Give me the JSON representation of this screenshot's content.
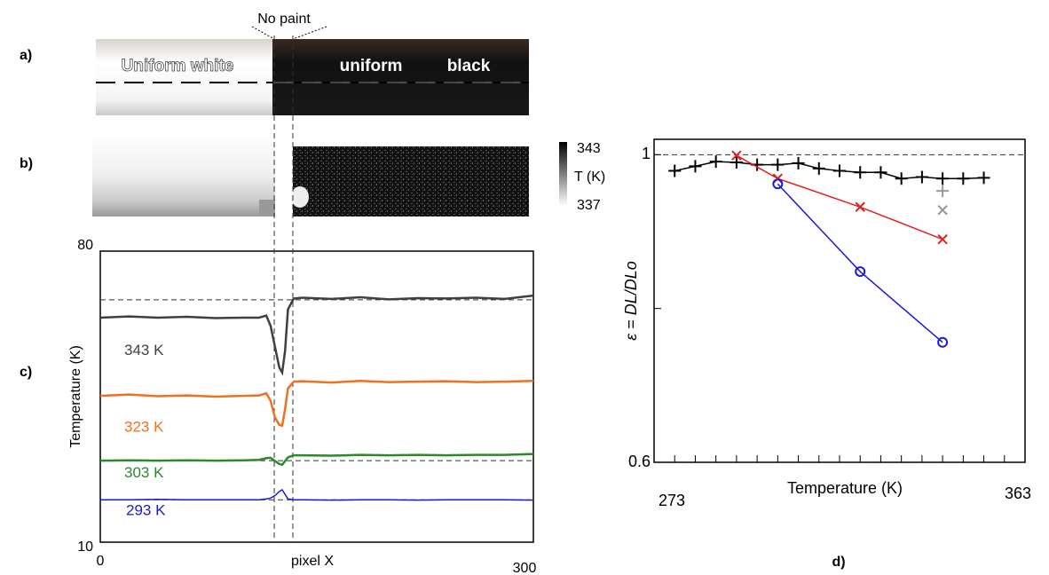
{
  "panel_labels": [
    "a)",
    "b)",
    "c)",
    "d)"
  ],
  "photo": {
    "labels": [
      "Uniform white",
      "uniform",
      "black"
    ],
    "annotation": "No paint"
  },
  "colorbar": {
    "label": "T (K)",
    "range": [
      337,
      343
    ]
  },
  "chart_data": [
    {
      "type": "line",
      "xlabel": "pixel X",
      "ylabel": "Temperature (K)",
      "xlim": [
        0,
        300
      ],
      "ylim": [
        10,
        80
      ],
      "xticks": [
        0,
        300
      ],
      "yticks": [
        10,
        80
      ],
      "hlines": [
        68.3,
        29.6,
        20.2
      ],
      "vlines": [
        120.5,
        133.4
      ],
      "x": [
        0,
        20,
        40,
        60,
        80,
        100,
        110,
        115,
        118,
        121,
        124,
        126,
        128,
        130,
        134,
        140,
        160,
        180,
        200,
        220,
        240,
        260,
        280,
        300
      ],
      "series": [
        {
          "name": "343 K",
          "color": "#404040",
          "values": [
            64,
            64.3,
            64,
            64.2,
            63.9,
            64,
            64,
            64.5,
            62,
            57,
            52,
            50.8,
            56,
            66,
            68.6,
            68.8,
            68.5,
            68.9,
            68.4,
            68.7,
            68.6,
            68.8,
            68.5,
            69.3
          ]
        },
        {
          "name": "323 K",
          "color": "#f07020",
          "values": [
            45.2,
            45.5,
            45.1,
            45.3,
            45,
            45.2,
            45.3,
            45.8,
            44,
            40,
            38.2,
            38,
            42,
            47,
            48.6,
            48.7,
            48.4,
            48.8,
            48.5,
            48.6,
            48.7,
            48.5,
            48.6,
            48.8
          ]
        },
        {
          "name": "303 K",
          "color": "#2a8a2a",
          "values": [
            29.6,
            29.7,
            29.6,
            29.7,
            29.6,
            29.7,
            29.8,
            30.2,
            30.3,
            29.5,
            28.8,
            28.6,
            29.5,
            30.4,
            30.9,
            30.9,
            30.8,
            31,
            30.9,
            31,
            30.9,
            31,
            31,
            31.2
          ]
        },
        {
          "name": "293 K",
          "color": "#1a1acc",
          "values": [
            20.2,
            20.2,
            20.3,
            20.2,
            20.2,
            20.2,
            20.2,
            20.4,
            20.6,
            21.2,
            22.2,
            22.6,
            21.5,
            20.4,
            20.2,
            20.2,
            20.1,
            20.2,
            20.2,
            20.1,
            20.2,
            20.2,
            20.2,
            20.1
          ]
        }
      ]
    },
    {
      "type": "scatter",
      "xlabel": "Temperature (K)",
      "ylabel": "ε = DL/DLo",
      "xlim": [
        273,
        363
      ],
      "ylim": [
        0.6,
        1.02
      ],
      "xticks": [
        273,
        363
      ],
      "yticks": [
        0.6,
        1
      ],
      "minor_xticks": [
        278,
        283,
        288,
        293,
        298,
        303,
        308,
        313,
        318,
        323,
        328,
        333,
        338,
        343,
        348,
        353,
        358
      ],
      "minor_yticks": [
        0.8
      ],
      "hlines": [
        1
      ],
      "series": [
        {
          "color": "#000000",
          "marker": "+",
          "x": [
            278,
            283,
            288,
            293,
            298,
            303,
            308,
            313,
            318,
            323,
            328,
            333,
            338,
            343,
            348,
            353
          ],
          "values": [
            0.979,
            0.985,
            0.991,
            0.99,
            0.987,
            0.987,
            0.989,
            0.982,
            0.979,
            0.977,
            0.977,
            0.969,
            0.971,
            0.969,
            0.969,
            0.97
          ]
        },
        {
          "color": "#e02020",
          "marker": "x",
          "x": [
            293,
            303,
            323,
            343
          ],
          "values": [
            0.999,
            0.969,
            0.932,
            0.89
          ]
        },
        {
          "color": "#1a1add",
          "marker": "o",
          "x": [
            303,
            323,
            343
          ],
          "values": [
            0.962,
            0.848,
            0.756
          ]
        },
        {
          "color": "#999999",
          "marker": "+",
          "x": [
            343
          ],
          "values": [
            0.953
          ]
        },
        {
          "color": "#999999",
          "marker": "x",
          "x": [
            343
          ],
          "values": [
            0.928
          ]
        }
      ]
    }
  ]
}
